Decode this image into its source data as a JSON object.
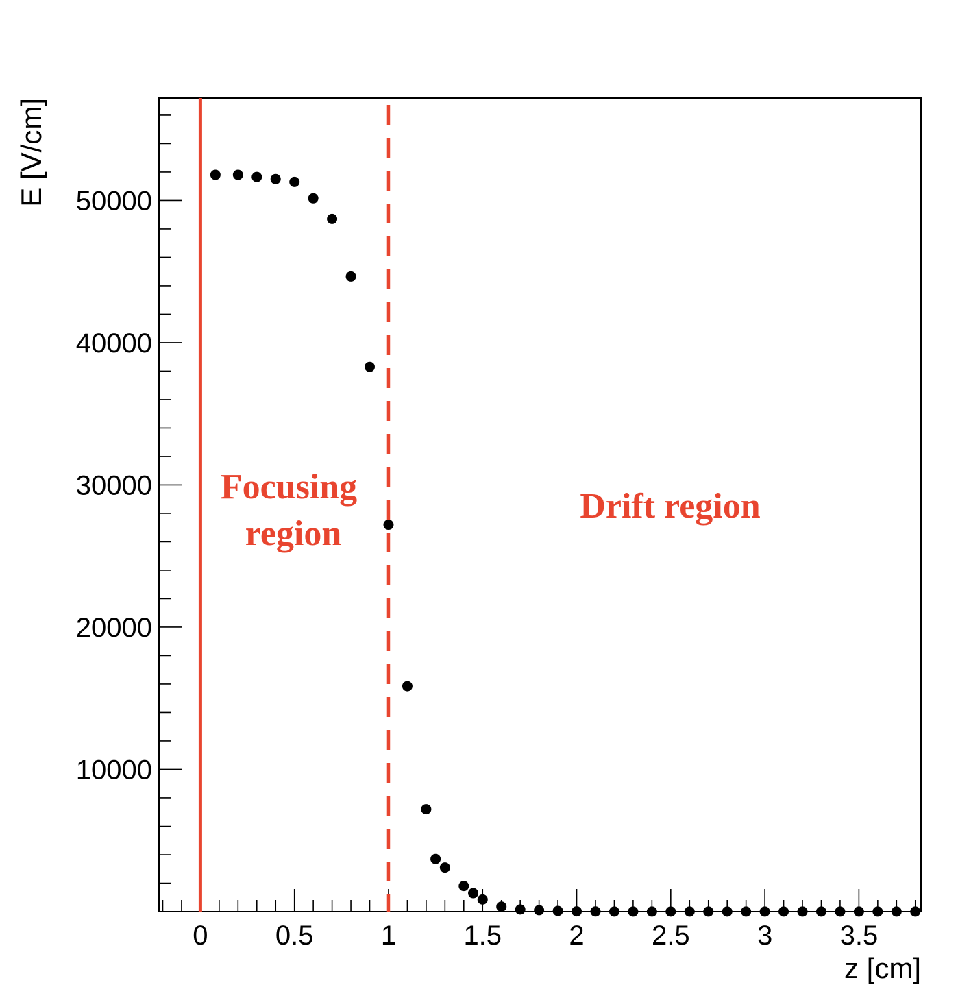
{
  "chart_data": {
    "type": "scatter",
    "xlabel": "z [cm]",
    "ylabel": "E [V/cm]",
    "xlim": [
      -0.22,
      3.83
    ],
    "ylim": [
      0,
      57200
    ],
    "x_ticks": [
      0,
      0.5,
      1,
      1.5,
      2,
      2.5,
      3,
      3.5
    ],
    "x_tick_labels": [
      "0",
      "0.5",
      "1",
      "1.5",
      "2",
      "2.5",
      "3",
      "3.5"
    ],
    "y_ticks": [
      10000,
      20000,
      30000,
      40000,
      50000
    ],
    "y_tick_labels": [
      "10000",
      "20000",
      "30000",
      "40000",
      "50000"
    ],
    "grid": false,
    "marker_color": "#000000",
    "accent_color": "#e8452f",
    "series": [
      {
        "x": [
          0.08,
          0.2,
          0.3,
          0.4,
          0.5,
          0.6,
          0.7,
          0.8,
          0.9,
          1.0,
          1.1,
          1.2,
          1.25,
          1.3,
          1.4,
          1.45,
          1.5,
          1.6,
          1.7,
          1.8,
          1.9,
          2.0,
          2.1,
          2.2,
          2.3,
          2.4,
          2.5,
          2.6,
          2.7,
          2.8,
          2.9,
          3.0,
          3.1,
          3.2,
          3.3,
          3.4,
          3.5,
          3.6,
          3.7,
          3.8
        ],
        "y": [
          51800,
          51800,
          51650,
          51500,
          51300,
          50150,
          48700,
          44650,
          38300,
          27200,
          15850,
          7200,
          3700,
          3100,
          1800,
          1300,
          850,
          350,
          150,
          100,
          50,
          20,
          10,
          5,
          5,
          5,
          5,
          5,
          5,
          5,
          5,
          5,
          5,
          5,
          5,
          5,
          5,
          5,
          5,
          5
        ]
      }
    ],
    "vertical_lines": [
      {
        "x": 0,
        "style": "solid"
      },
      {
        "x": 1,
        "style": "dashed"
      }
    ],
    "annotations": [
      {
        "lines": [
          "Focusing",
          "region"
        ]
      },
      {
        "lines": [
          "Drift region"
        ]
      }
    ]
  }
}
